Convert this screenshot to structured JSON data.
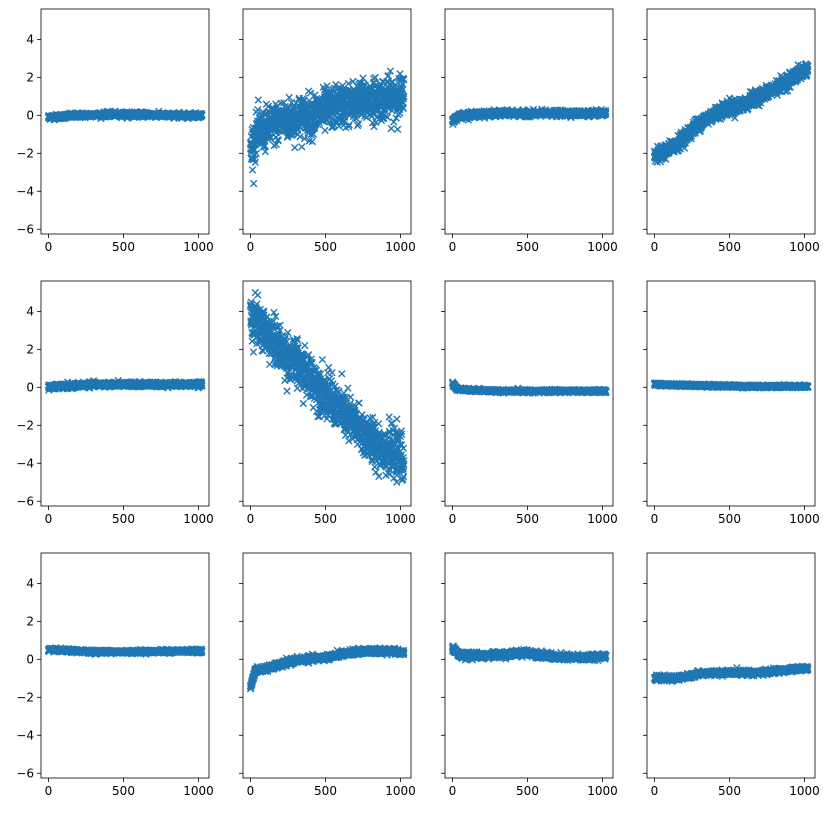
{
  "chart_data": {
    "type": "scatter",
    "layout": "3x4 grid",
    "sharey": true,
    "marker": "x",
    "color": "#1f77b4",
    "xlim": [
      -50,
      1070
    ],
    "ylim": [
      -6.25,
      5.6
    ],
    "xticks": [
      0,
      500,
      1000
    ],
    "yticks": [
      4,
      2,
      0,
      -2,
      -4,
      -6
    ],
    "xtick_labels": [
      "0",
      "500",
      "1000"
    ],
    "ytick_labels": [
      "4",
      "2",
      "0",
      "−2",
      "−4",
      "−6"
    ],
    "grid": false,
    "n_points_per_panel": 1024,
    "panels": [
      {
        "row": 0,
        "col": 0,
        "mean_curve": [
          [
            0,
            -0.1
          ],
          [
            200,
            0.0
          ],
          [
            400,
            0.05
          ],
          [
            600,
            0.05
          ],
          [
            800,
            0.0
          ],
          [
            1024,
            0.0
          ]
        ],
        "spread": 0.1
      },
      {
        "row": 0,
        "col": 1,
        "mean_curve": [
          [
            0,
            -1.8
          ],
          [
            50,
            -0.9
          ],
          [
            200,
            -0.3
          ],
          [
            400,
            0.0
          ],
          [
            600,
            0.5
          ],
          [
            800,
            0.8
          ],
          [
            1024,
            1.0
          ]
        ],
        "spread": 0.9
      },
      {
        "row": 0,
        "col": 2,
        "mean_curve": [
          [
            0,
            -0.3
          ],
          [
            50,
            0.0
          ],
          [
            300,
            0.1
          ],
          [
            600,
            0.1
          ],
          [
            1024,
            0.1
          ]
        ],
        "spread": 0.12
      },
      {
        "row": 0,
        "col": 3,
        "mean_curve": [
          [
            0,
            -2.2
          ],
          [
            150,
            -1.5
          ],
          [
            300,
            -0.4
          ],
          [
            450,
            0.3
          ],
          [
            600,
            0.6
          ],
          [
            800,
            1.4
          ],
          [
            1024,
            2.5
          ]
        ],
        "spread": 0.3
      },
      {
        "row": 1,
        "col": 0,
        "mean_curve": [
          [
            0,
            0.0
          ],
          [
            300,
            0.15
          ],
          [
            600,
            0.15
          ],
          [
            1024,
            0.15
          ]
        ],
        "spread": 0.1
      },
      {
        "row": 1,
        "col": 1,
        "mean_curve": [
          [
            0,
            3.8
          ],
          [
            200,
            2.0
          ],
          [
            400,
            0.5
          ],
          [
            600,
            -1.2
          ],
          [
            800,
            -2.8
          ],
          [
            1024,
            -3.8
          ]
        ],
        "spread": 1.0
      },
      {
        "row": 1,
        "col": 2,
        "mean_curve": [
          [
            0,
            0.2
          ],
          [
            30,
            -0.1
          ],
          [
            300,
            -0.2
          ],
          [
            600,
            -0.2
          ],
          [
            1024,
            -0.2
          ]
        ],
        "spread": 0.06
      },
      {
        "row": 1,
        "col": 3,
        "mean_curve": [
          [
            0,
            0.15
          ],
          [
            300,
            0.1
          ],
          [
            600,
            0.05
          ],
          [
            1024,
            0.05
          ]
        ],
        "spread": 0.06
      },
      {
        "row": 2,
        "col": 0,
        "mean_curve": [
          [
            0,
            0.5
          ],
          [
            300,
            0.4
          ],
          [
            600,
            0.4
          ],
          [
            1024,
            0.45
          ]
        ],
        "spread": 0.07
      },
      {
        "row": 2,
        "col": 1,
        "mean_curve": [
          [
            0,
            -1.5
          ],
          [
            30,
            -0.6
          ],
          [
            150,
            -0.4
          ],
          [
            300,
            -0.05
          ],
          [
            500,
            0.1
          ],
          [
            700,
            0.4
          ],
          [
            900,
            0.45
          ],
          [
            1024,
            0.35
          ]
        ],
        "spread": 0.12
      },
      {
        "row": 2,
        "col": 2,
        "mean_curve": [
          [
            0,
            0.6
          ],
          [
            50,
            0.2
          ],
          [
            250,
            0.2
          ],
          [
            500,
            0.35
          ],
          [
            700,
            0.1
          ],
          [
            900,
            0.1
          ],
          [
            1024,
            0.2
          ]
        ],
        "spread": 0.13
      },
      {
        "row": 2,
        "col": 3,
        "mean_curve": [
          [
            0,
            -1.0
          ],
          [
            150,
            -1.0
          ],
          [
            300,
            -0.75
          ],
          [
            500,
            -0.7
          ],
          [
            700,
            -0.7
          ],
          [
            900,
            -0.55
          ],
          [
            1024,
            -0.45
          ]
        ],
        "spread": 0.1
      }
    ]
  }
}
